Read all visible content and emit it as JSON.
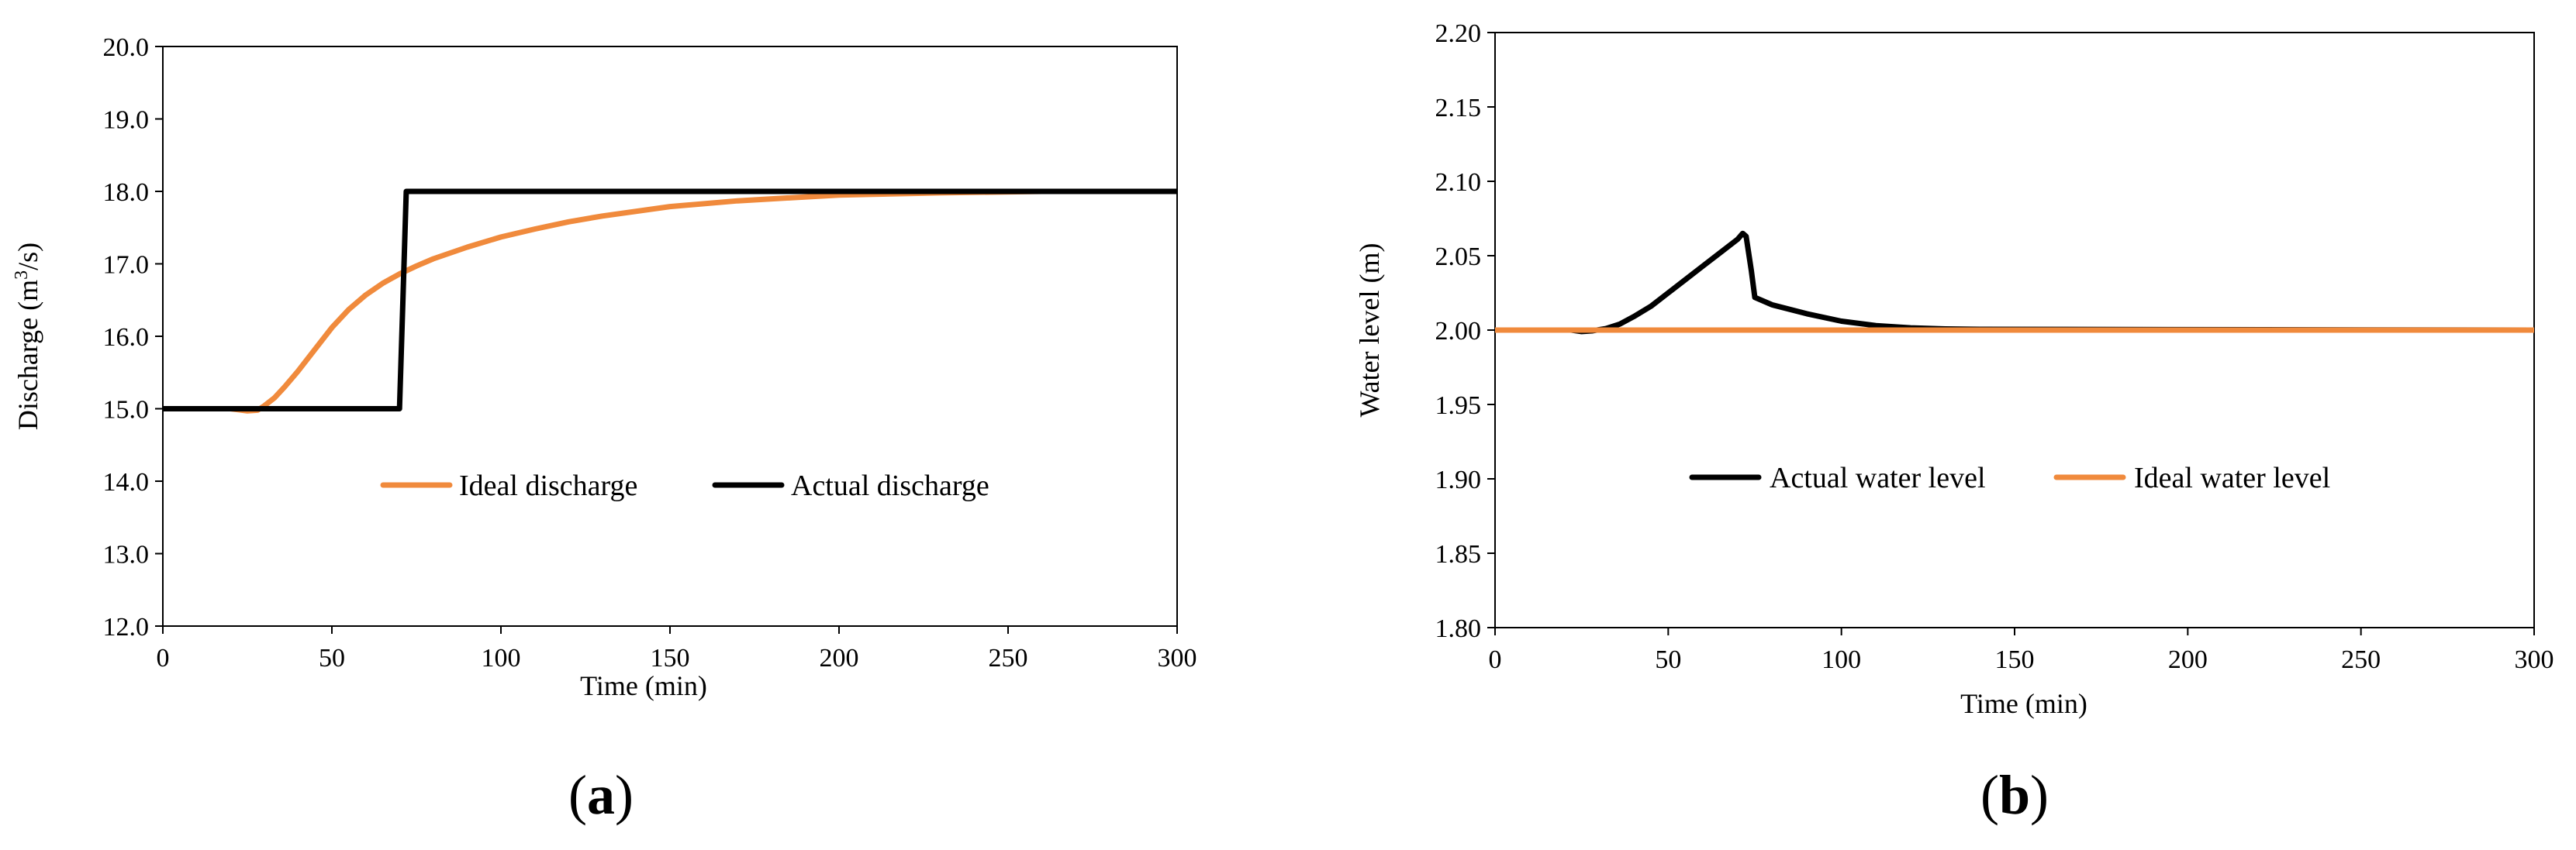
{
  "chart_data": [
    {
      "type": "line",
      "panel_label": "(a)",
      "panel_letter": "a",
      "xlabel": "Time (min)",
      "ylabel": "Discharge (m³/s)",
      "ylabel_parts": {
        "prefix": "Discharge (m",
        "sup": "3",
        "suffix": "/s)"
      },
      "xlim": [
        0,
        300
      ],
      "ylim": [
        12.0,
        20.0
      ],
      "xticks": [
        "0",
        "50",
        "100",
        "150",
        "200",
        "250",
        "300"
      ],
      "yticks": [
        "12.0",
        "13.0",
        "14.0",
        "15.0",
        "16.0",
        "17.0",
        "18.0",
        "19.0",
        "20.0"
      ],
      "grid": false,
      "legend_position": "inside-center",
      "series": [
        {
          "name": "Ideal discharge",
          "color": "#f08a3c",
          "x": [
            0,
            20,
            25,
            28,
            30,
            33,
            36,
            40,
            45,
            50,
            55,
            60,
            65,
            70,
            75,
            80,
            90,
            100,
            110,
            120,
            130,
            150,
            170,
            200,
            230,
            260,
            300
          ],
          "y": [
            15.0,
            15.0,
            14.97,
            14.98,
            15.04,
            15.15,
            15.3,
            15.52,
            15.82,
            16.12,
            16.37,
            16.57,
            16.73,
            16.86,
            16.97,
            17.07,
            17.23,
            17.37,
            17.48,
            17.58,
            17.66,
            17.79,
            17.87,
            17.95,
            17.98,
            18.0,
            18.0
          ]
        },
        {
          "name": "Actual discharge",
          "color": "#000000",
          "x": [
            0,
            70,
            71,
            72,
            300
          ],
          "y": [
            15.0,
            15.0,
            16.5,
            18.0,
            18.0
          ]
        }
      ]
    },
    {
      "type": "line",
      "panel_label": "(b)",
      "panel_letter": "b",
      "xlabel": "Time (min)",
      "ylabel": "Water level (m)",
      "xlim": [
        0,
        300
      ],
      "ylim": [
        1.8,
        2.2
      ],
      "xticks": [
        "0",
        "50",
        "100",
        "150",
        "200",
        "250",
        "300"
      ],
      "yticks": [
        "1.80",
        "1.85",
        "1.90",
        "1.95",
        "2.00",
        "2.05",
        "2.10",
        "2.15",
        "2.20"
      ],
      "grid": false,
      "legend_position": "inside-center",
      "series": [
        {
          "name": "Actual water level",
          "color": "#000000",
          "x": [
            0,
            22,
            25,
            28,
            32,
            36,
            40,
            45,
            50,
            55,
            60,
            65,
            70,
            71.5,
            72.5,
            74,
            75,
            80,
            90,
            100,
            110,
            120,
            130,
            140,
            300
          ],
          "y": [
            2.0,
            2.0,
            1.999,
            1.9995,
            2.001,
            2.004,
            2.009,
            2.016,
            2.025,
            2.034,
            2.043,
            2.052,
            2.061,
            2.065,
            2.063,
            2.04,
            2.022,
            2.017,
            2.011,
            2.006,
            2.003,
            2.0015,
            2.0008,
            2.0005,
            2.0
          ]
        },
        {
          "name": "Ideal water level",
          "color": "#f08a3c",
          "x": [
            0,
            300
          ],
          "y": [
            2.0,
            2.0
          ]
        }
      ]
    }
  ]
}
